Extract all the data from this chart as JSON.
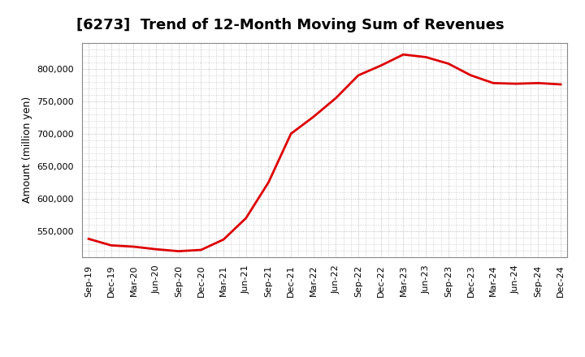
{
  "title": "[6273]  Trend of 12-Month Moving Sum of Revenues",
  "ylabel": "Amount (million yen)",
  "background_color": "#ffffff",
  "plot_background": "#ffffff",
  "line_color": "#dd0000",
  "line_width": 2.0,
  "x_labels": [
    "Sep-19",
    "Dec-19",
    "Mar-20",
    "Jun-20",
    "Sep-20",
    "Dec-20",
    "Mar-21",
    "Jun-21",
    "Sep-21",
    "Dec-21",
    "Mar-22",
    "Jun-22",
    "Sep-22",
    "Dec-22",
    "Mar-23",
    "Jun-23",
    "Sep-23",
    "Dec-23",
    "Mar-24",
    "Jun-24",
    "Sep-24",
    "Dec-24"
  ],
  "values": [
    538000,
    528000,
    526000,
    522000,
    519000,
    521000,
    537000,
    570000,
    625000,
    700000,
    726000,
    755000,
    790000,
    805000,
    822000,
    818000,
    808000,
    790000,
    778000,
    777000,
    778000,
    776000
  ],
  "ylim_min": 510000,
  "ylim_max": 840000,
  "yticks": [
    550000,
    600000,
    650000,
    700000,
    750000,
    800000
  ],
  "grid_color": "#aaaaaa",
  "title_fontsize": 13,
  "label_fontsize": 9,
  "tick_fontsize": 8
}
